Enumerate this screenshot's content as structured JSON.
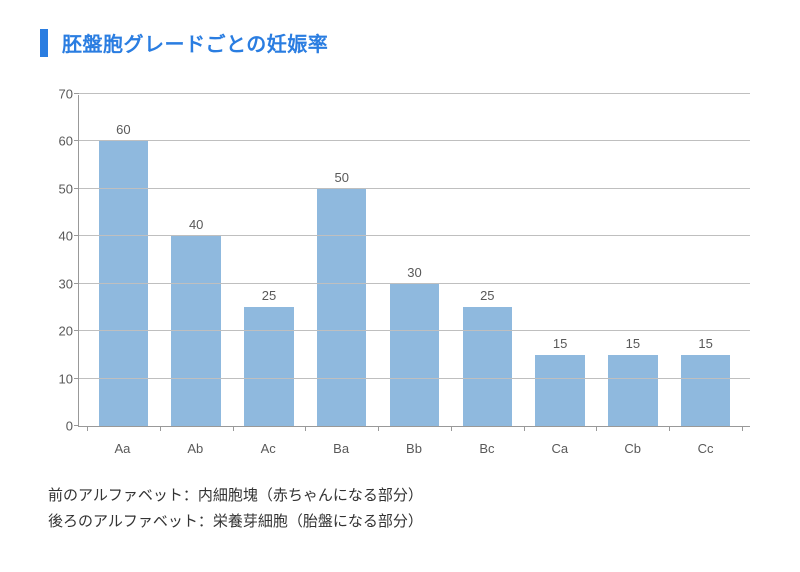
{
  "title": "胚盤胞グレードごとの妊娠率",
  "chart": {
    "type": "bar",
    "categories": [
      "Aa",
      "Ab",
      "Ac",
      "Ba",
      "Bb",
      "Bc",
      "Ca",
      "Cb",
      "Cc"
    ],
    "values": [
      60,
      40,
      25,
      50,
      30,
      25,
      15,
      15,
      15
    ],
    "bar_color": "#8fb9de",
    "ylim_min": 0,
    "ylim_max": 70,
    "ytick_step": 10,
    "grid_color": "#bfbfbf",
    "axis_color": "#999999",
    "label_color": "#595959",
    "background_color": "#ffffff",
    "value_label_fontsize": 13,
    "axis_label_fontsize": 13,
    "bar_width_ratio": 0.68
  },
  "footnotes": [
    "前のアルファベット：内細胞塊（赤ちゃんになる部分）",
    "後ろのアルファベット：栄養芽細胞（胎盤になる部分）"
  ],
  "colors": {
    "accent": "#2a7de1",
    "text": "#333333"
  }
}
